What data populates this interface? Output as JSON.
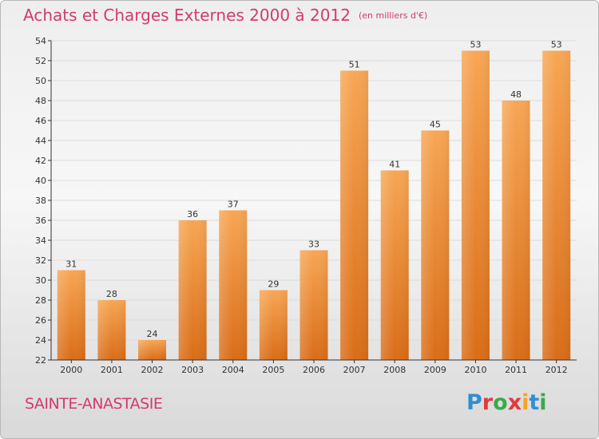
{
  "title": "Achats et Charges Externes 2000 à 2012",
  "subtitle": "(en milliers d'€)",
  "place": "SAINTE-ANASTASIE",
  "logo": {
    "text": "Proxiti"
  },
  "colors": {
    "title": "#d23b6c",
    "bar_top": "#f7a654",
    "bar_bottom": "#d96d18",
    "axis": "#333333"
  },
  "chart_data": {
    "type": "bar",
    "categories": [
      "2000",
      "2001",
      "2002",
      "2003",
      "2004",
      "2005",
      "2006",
      "2007",
      "2008",
      "2009",
      "2010",
      "2011",
      "2012"
    ],
    "values": [
      31,
      28,
      24,
      36,
      37,
      29,
      33,
      51,
      41,
      45,
      53,
      48,
      53
    ],
    "title": "Achats et Charges Externes 2000 à 2012",
    "subtitle": "(en milliers d'€)",
    "xlabel": "",
    "ylabel": "",
    "ylim": [
      22,
      54
    ],
    "yticks": [
      22,
      24,
      26,
      28,
      30,
      32,
      34,
      36,
      38,
      40,
      42,
      44,
      46,
      48,
      50,
      52,
      54
    ],
    "grid": true,
    "legend": "none"
  }
}
